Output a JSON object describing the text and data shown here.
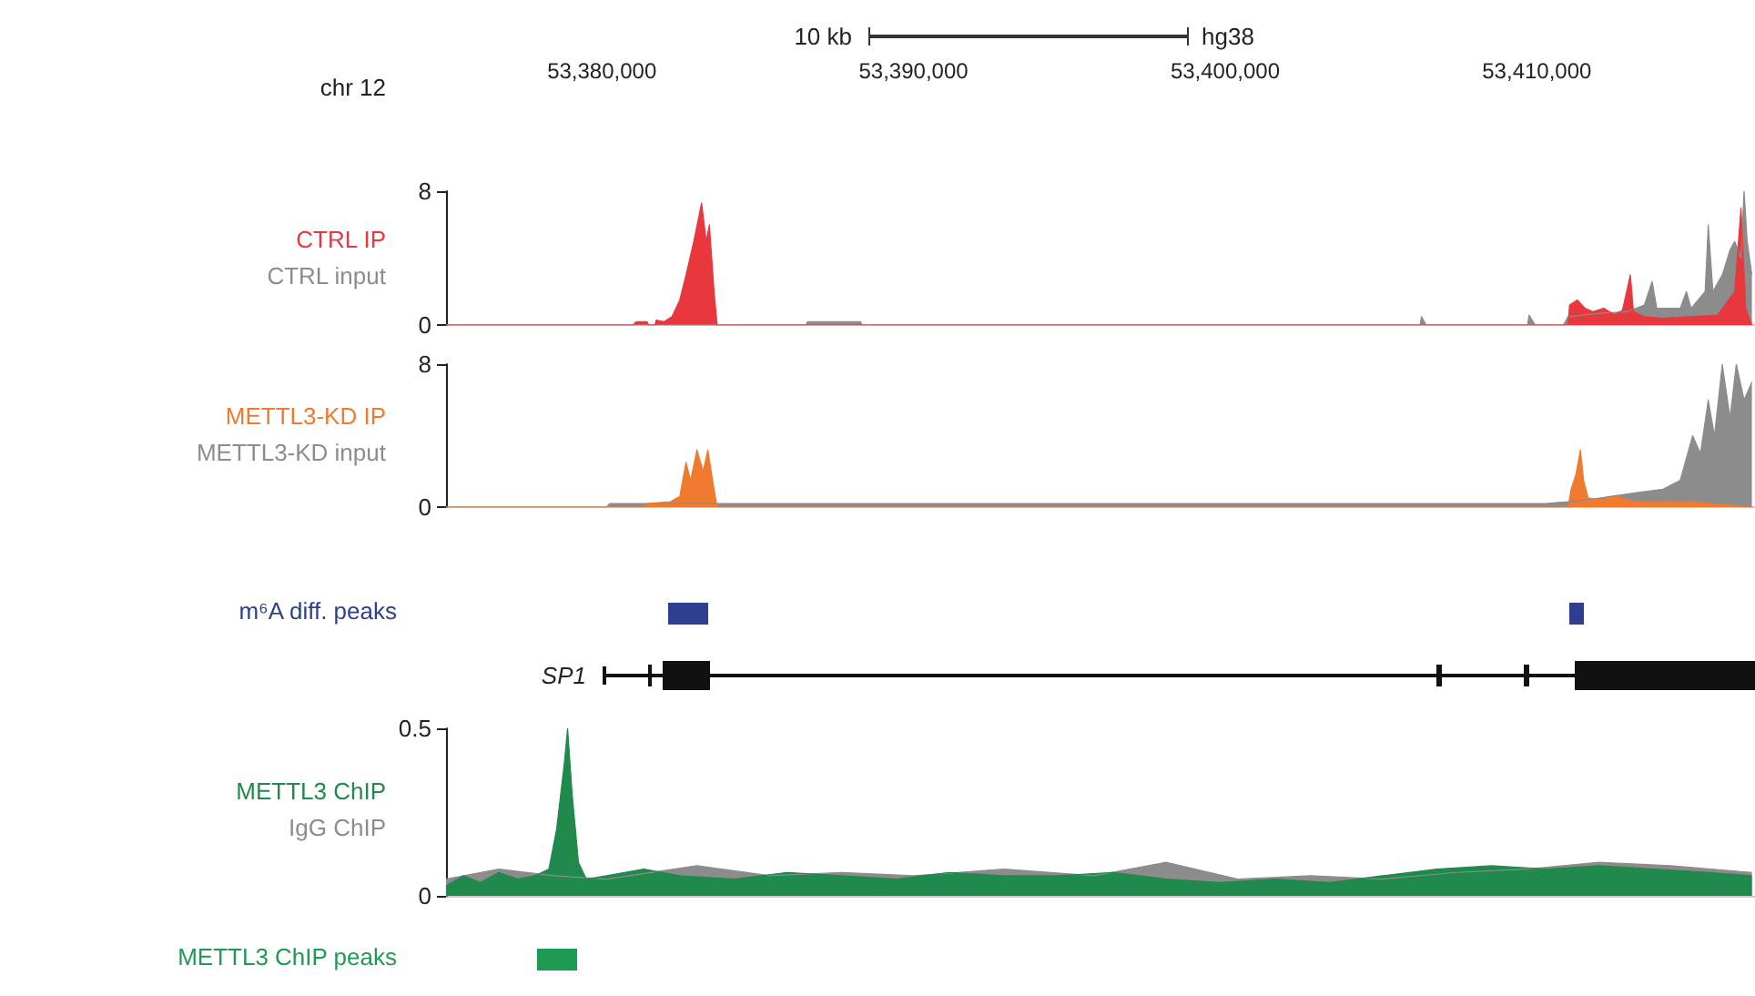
{
  "chart_data": [
    {
      "type": "area",
      "annotations": [
        "chr 12",
        "10 kb",
        "hg38"
      ],
      "xlim": [
        53375000,
        53417000
      ],
      "xticks": [
        {
          "value": 53380000,
          "label": "53,380,000"
        },
        {
          "value": 53390000,
          "label": "53,390,000"
        },
        {
          "value": 53400000,
          "label": "53,400,000"
        },
        {
          "value": 53410000,
          "label": "53,410,000"
        }
      ],
      "ylim": [
        0,
        8
      ],
      "yticks": [
        0,
        8
      ],
      "series": [
        {
          "name": "CTRL input",
          "color": "#8c8c8c",
          "x": [
            53375000,
            53386550,
            53386600,
            53388300,
            53388350,
            53406250,
            53406300,
            53406450,
            53409700,
            53409750,
            53409950,
            53410850,
            53411000,
            53412000,
            53412900,
            53413450,
            53413700,
            53413850,
            53414600,
            53414800,
            53414950,
            53415400,
            53415500,
            53415650,
            53415950,
            53416200,
            53416350,
            53416550,
            53416650,
            53416750,
            53416900
          ],
          "values": [
            0,
            0,
            0.2,
            0.2,
            0,
            0,
            0.5,
            0,
            0,
            0.6,
            0,
            0,
            0.5,
            0.7,
            0.8,
            1.2,
            2.6,
            1,
            1,
            2,
            1,
            2,
            6,
            2,
            3,
            4.5,
            5,
            4,
            8,
            5,
            3
          ]
        },
        {
          "name": "CTRL IP",
          "color": "#e8383d",
          "x": [
            53375000,
            53381000,
            53381100,
            53381450,
            53381500,
            53381700,
            53381750,
            53382000,
            53382250,
            53382500,
            53382700,
            53382950,
            53383200,
            53383350,
            53383450,
            53383600,
            53383700,
            53411000,
            53411050,
            53411300,
            53411550,
            53411800,
            53412150,
            53412500,
            53412750,
            53413000,
            53413100,
            53413450,
            53414050,
            53414900,
            53415800,
            53416350,
            53416550,
            53416700,
            53416900
          ],
          "values": [
            0,
            0,
            0.2,
            0.2,
            0,
            0,
            0.3,
            0.2,
            0.5,
            1.5,
            3,
            5,
            7.3,
            5,
            6,
            2,
            0,
            0,
            1.2,
            1.5,
            1,
            0.8,
            1,
            0.6,
            0.9,
            3,
            0.8,
            0.5,
            0.4,
            0.5,
            0.6,
            2,
            7,
            1,
            0
          ]
        }
      ]
    },
    {
      "type": "area",
      "tick_labels": "y",
      "xlim": [
        53375000,
        53417000
      ],
      "ylim": [
        0,
        8
      ],
      "yticks": [
        0,
        8
      ],
      "series": [
        {
          "name": "METTL3-KD input",
          "color": "#8c8c8c",
          "x": [
            53375000,
            53380150,
            53380250,
            53390000,
            53401600,
            53410300,
            53411000,
            53412000,
            53413150,
            53414050,
            53414600,
            53415000,
            53415250,
            53415500,
            53415700,
            53415950,
            53416200,
            53416400,
            53416650,
            53416900
          ],
          "values": [
            0,
            0,
            0.2,
            0.2,
            0.2,
            0.2,
            0.3,
            0.5,
            0.8,
            1,
            1.5,
            4,
            3,
            6,
            4,
            8,
            5,
            8,
            6,
            7
          ]
        },
        {
          "name": "METTL3-KD IP",
          "color": "#f07a2e",
          "x": [
            53375000,
            53381350,
            53381450,
            53382200,
            53382500,
            53382700,
            53382850,
            53383050,
            53383250,
            53383400,
            53383600,
            53383700,
            53411000,
            53411100,
            53411250,
            53411400,
            53411500,
            53411650,
            53412000,
            53412550,
            53413150,
            53414900,
            53416900
          ],
          "values": [
            0,
            0,
            0.2,
            0.3,
            0.6,
            2.5,
            1.5,
            3.2,
            2,
            3.2,
            1,
            0,
            0,
            1,
            1.8,
            3.2,
            1.5,
            0.5,
            0.4,
            0.6,
            0.3,
            0.3,
            0
          ]
        }
      ]
    },
    {
      "type": "other",
      "title": "m⁶A diff. peaks"
    },
    {
      "type": "other",
      "annotations": [
        "SP1"
      ]
    },
    {
      "type": "area",
      "tick_labels": "y",
      "xlim": [
        53375000,
        53417000
      ],
      "ylim": [
        0,
        0.5
      ],
      "yticks": [
        0,
        0.5
      ],
      "series": [
        {
          "name": "IgG ChIP",
          "color": "#8c8c8c",
          "x": [
            53375000,
            53376700,
            53378450,
            53380150,
            53383050,
            53385400,
            53387700,
            53390000,
            53392900,
            53395800,
            53398100,
            53400400,
            53402750,
            53405050,
            53407400,
            53409700,
            53412000,
            53414300,
            53416900
          ],
          "values": [
            0.05,
            0.08,
            0.06,
            0.05,
            0.09,
            0.06,
            0.07,
            0.06,
            0.08,
            0.06,
            0.1,
            0.05,
            0.06,
            0.05,
            0.07,
            0.08,
            0.1,
            0.09,
            0.07
          ]
        },
        {
          "name": "METTL3 ChIP",
          "color": "#1f8a4c",
          "x": [
            53375000,
            53375550,
            53376100,
            53376700,
            53377300,
            53377850,
            53378300,
            53378550,
            53378800,
            53378900,
            53379050,
            53379250,
            53379500,
            53380150,
            53381350,
            53382500,
            53384250,
            53385950,
            53387700,
            53389450,
            53391150,
            53392900,
            53394650,
            53396400,
            53398100,
            53399850,
            53401600,
            53403350,
            53405050,
            53406800,
            53408550,
            53410300,
            53412000,
            53413750,
            53415500,
            53416900
          ],
          "values": [
            0.03,
            0.06,
            0.04,
            0.07,
            0.05,
            0.06,
            0.08,
            0.2,
            0.4,
            0.5,
            0.3,
            0.1,
            0.05,
            0.06,
            0.08,
            0.06,
            0.05,
            0.07,
            0.06,
            0.05,
            0.07,
            0.06,
            0.06,
            0.07,
            0.05,
            0.04,
            0.05,
            0.04,
            0.06,
            0.08,
            0.09,
            0.08,
            0.09,
            0.08,
            0.07,
            0.06
          ]
        }
      ]
    },
    {
      "type": "other",
      "title": "METTL3 ChIP peaks"
    }
  ]
}
